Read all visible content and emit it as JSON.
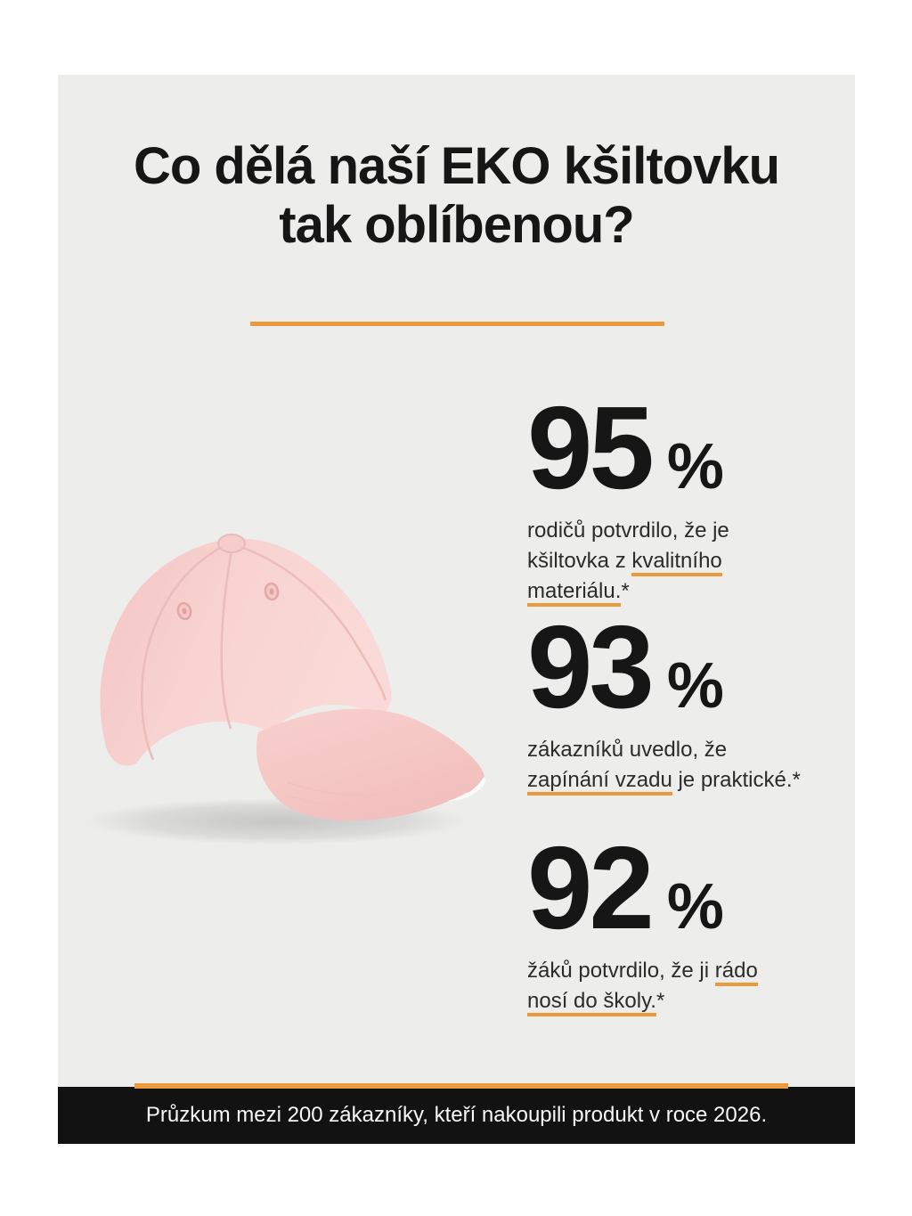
{
  "title": {
    "line1": "Co dělá naší EKO kšiltovku",
    "line2": "tak oblíbenou?"
  },
  "colors": {
    "accent": "#EA9A3C",
    "card_bg": "#EDEDEB",
    "ink": "#161616",
    "body_text": "#2B2B2B",
    "footer_bg": "#121212",
    "footer_text": "#F7F7F7",
    "page_bg": "#FFFFFF",
    "cap_pink": "#F8D2D0"
  },
  "stats": [
    {
      "value": "95",
      "unit": "%",
      "description": [
        {
          "t": "rodičů potvrdilo, že je"
        },
        {
          "br": true
        },
        {
          "t": "kšiltovka z "
        },
        {
          "t": "kvalitního",
          "u": true
        },
        {
          "br": true
        },
        {
          "t": "materiálu.",
          "u": true
        },
        {
          "t": "*"
        }
      ]
    },
    {
      "value": "93",
      "unit": "%",
      "description": [
        {
          "t": "zákazníků uvedlo, že"
        },
        {
          "br": true
        },
        {
          "t": "zapínání vzadu",
          "u": true
        },
        {
          "t": " je praktické.*"
        }
      ]
    },
    {
      "value": "92",
      "unit": "%",
      "description": [
        {
          "t": "žáků potvrdilo, že ji "
        },
        {
          "t": "rádo",
          "u": true
        },
        {
          "br": true
        },
        {
          "t": "nosí do školy.",
          "u": true
        },
        {
          "t": "*"
        }
      ]
    }
  ],
  "footer": {
    "text": "Průzkum mezi 200 zákazníky, kteří nakoupili produkt v roce 2026."
  }
}
